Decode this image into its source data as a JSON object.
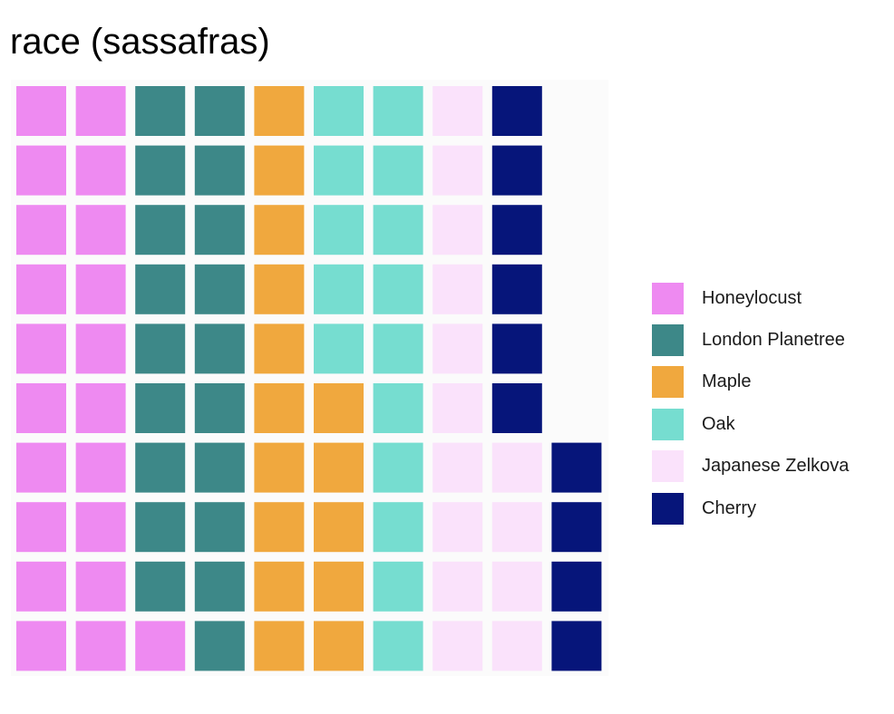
{
  "chart_data": {
    "type": "waffle",
    "title": "race (sassafras)",
    "series": [
      {
        "name": "Honeylocust",
        "value": 21,
        "color": "#EE8AF1"
      },
      {
        "name": "London Planetree",
        "value": 19,
        "color": "#3D8888"
      },
      {
        "name": "Maple",
        "value": 15,
        "color": "#F0A83E"
      },
      {
        "name": "Oak",
        "value": 15,
        "color": "#76DDD0"
      },
      {
        "name": "Japanese Zelkova",
        "value": 14,
        "color": "#FAE2FB"
      },
      {
        "name": "Cherry",
        "value": 10,
        "color": "#06157A"
      }
    ],
    "rows": 10,
    "fill_order": "columns, bottom to top, left to right",
    "legend_position": "right",
    "grid": false
  }
}
